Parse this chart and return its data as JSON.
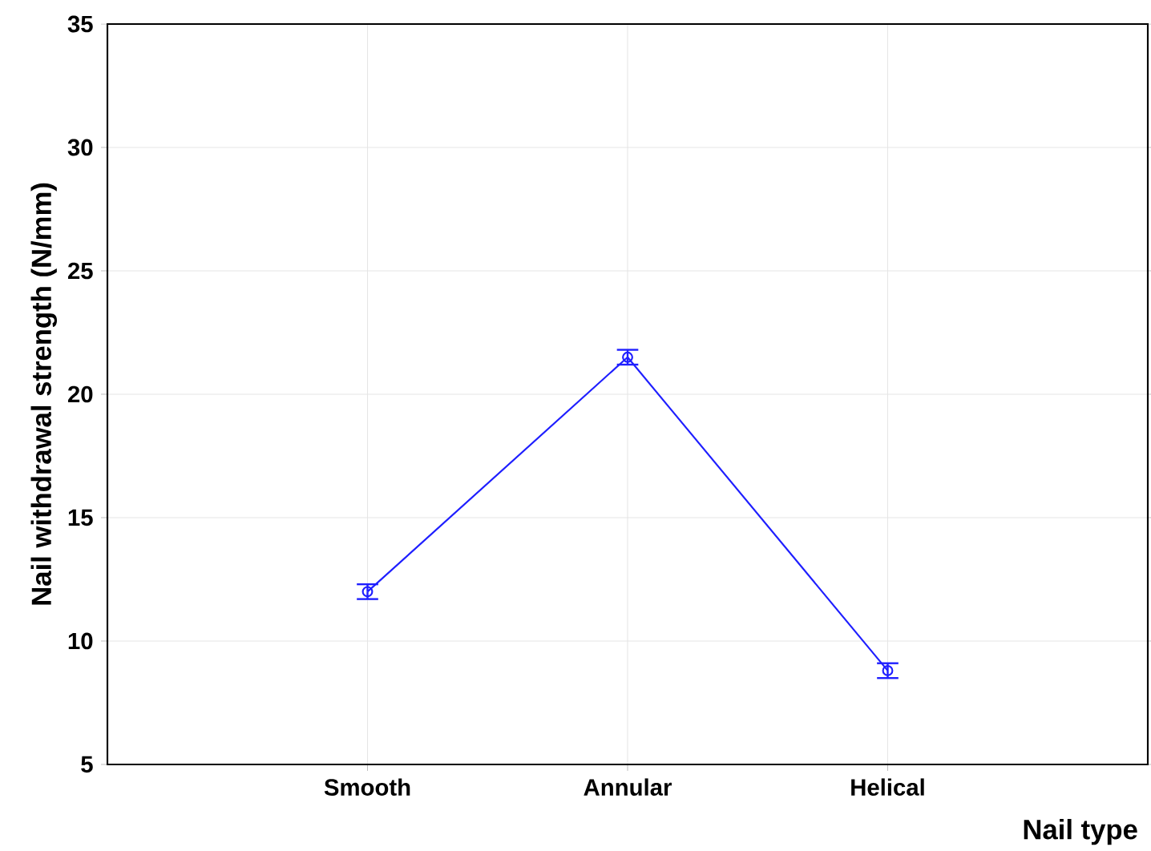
{
  "chart_data": {
    "type": "line",
    "xlabel": "Nail type",
    "ylabel": "Nail withdrawal strength (N/mm)",
    "categories": [
      "Smooth",
      "Annular",
      "Helical"
    ],
    "series": [
      {
        "color": "#1f1fff",
        "values": [
          12.0,
          21.5,
          8.8
        ],
        "errors": [
          0.3,
          0.3,
          0.3
        ]
      }
    ],
    "ylim": [
      5,
      35
    ],
    "yticks": [
      5,
      10,
      15,
      20,
      25,
      30,
      35
    ],
    "grid": true,
    "marker": "circle",
    "line_style": "solid"
  }
}
